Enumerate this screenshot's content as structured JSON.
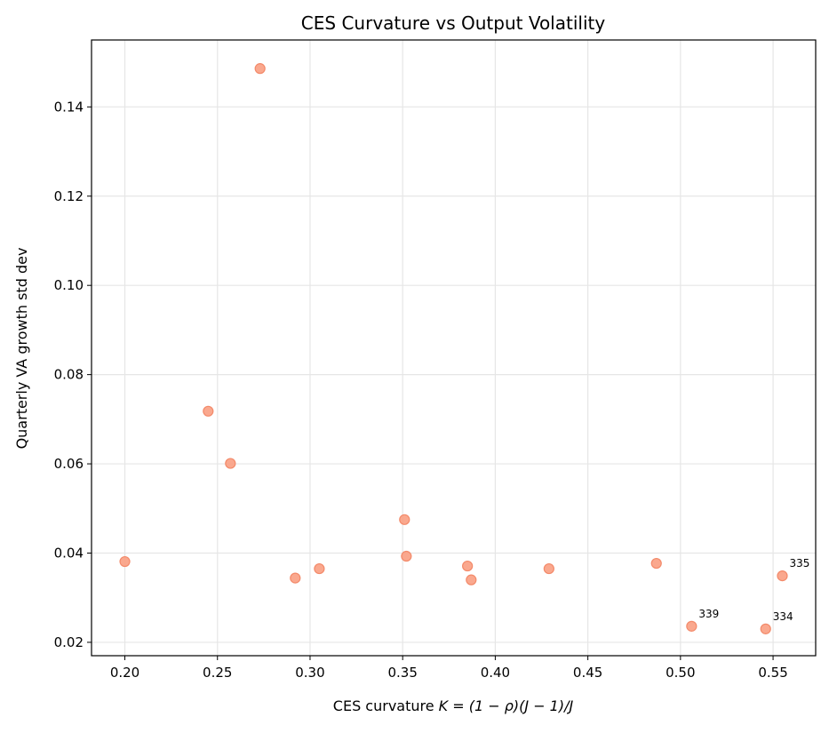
{
  "chart_data": {
    "type": "scatter",
    "title": "CES Curvature vs Output Volatility",
    "xlabel_prefix": "CES curvature ",
    "xlabel_math": "K = (1 − ρ)(J − 1)/J",
    "ylabel": "Quarterly VA growth std dev",
    "xlim": [
      0.182,
      0.573
    ],
    "ylim": [
      0.017,
      0.155
    ],
    "xticks": [
      "0.20",
      "0.25",
      "0.30",
      "0.35",
      "0.40",
      "0.45",
      "0.50",
      "0.55"
    ],
    "yticks": [
      "0.02",
      "0.04",
      "0.06",
      "0.08",
      "0.10",
      "0.12",
      "0.14"
    ],
    "grid": true,
    "marker_color": "#fa9e82",
    "marker_edge_color": "#f38a6a",
    "points": [
      {
        "x": 0.2,
        "y": 0.0381,
        "label": ""
      },
      {
        "x": 0.245,
        "y": 0.0718,
        "label": ""
      },
      {
        "x": 0.257,
        "y": 0.0601,
        "label": ""
      },
      {
        "x": 0.273,
        "y": 0.1486,
        "label": ""
      },
      {
        "x": 0.292,
        "y": 0.0344,
        "label": ""
      },
      {
        "x": 0.305,
        "y": 0.0365,
        "label": ""
      },
      {
        "x": 0.351,
        "y": 0.0475,
        "label": ""
      },
      {
        "x": 0.352,
        "y": 0.0393,
        "label": ""
      },
      {
        "x": 0.385,
        "y": 0.0371,
        "label": ""
      },
      {
        "x": 0.387,
        "y": 0.034,
        "label": ""
      },
      {
        "x": 0.429,
        "y": 0.0365,
        "label": ""
      },
      {
        "x": 0.487,
        "y": 0.0377,
        "label": ""
      },
      {
        "x": 0.506,
        "y": 0.0236,
        "label": "339"
      },
      {
        "x": 0.546,
        "y": 0.023,
        "label": "334"
      },
      {
        "x": 0.555,
        "y": 0.0349,
        "label": "335"
      }
    ]
  }
}
